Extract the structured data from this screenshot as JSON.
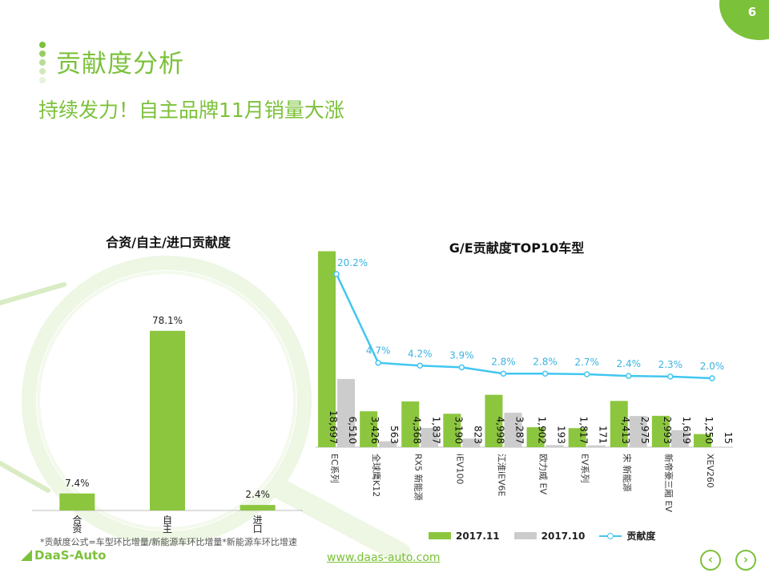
{
  "page": {
    "number": "6",
    "title": "贡献度分析",
    "subtitle": "持续发力！自主品牌11月销量大涨",
    "footnote": "*贡献度公式=车型环比增量/新能源车环比增量*新能源车环比增速",
    "url": "www.daas-auto.com",
    "logo_text": "DaaS-Auto",
    "nav_prev": "‹",
    "nav_next": "›"
  },
  "colors": {
    "accent": "#7cc13a",
    "bar_green": "#8cc63f",
    "bar_gray": "#cccccc",
    "line_blue": "#42c6f0"
  },
  "chart_data": [
    {
      "type": "bar",
      "title": "合资/自主/进口贡献度",
      "categories": [
        "合资",
        "自主",
        "进口"
      ],
      "values": [
        7.4,
        78.1,
        2.4
      ],
      "labels": [
        "7.4%",
        "78.1%",
        "2.4%"
      ],
      "ylim": [
        0,
        100
      ],
      "grid": false
    },
    {
      "type": "bar",
      "title": "G/E贡献度TOP10车型",
      "categories": [
        "EC系列",
        "全球鹰K12",
        "RX5 新能源",
        "iEV100",
        "江淮iEV6E",
        "欧力威 EV",
        "EV系列",
        "宋 新能源",
        "新帝豪三厢 EV",
        "XEV260"
      ],
      "series": [
        {
          "name": "2017.11",
          "values": [
            18697,
            3426,
            4368,
            3190,
            4998,
            1902,
            1817,
            4413,
            2993,
            1250
          ],
          "labels": [
            "18,697",
            "3,426",
            "4,368",
            "3,190",
            "4,998",
            "1,902",
            "1,817",
            "4,413",
            "2,993",
            "1,250"
          ]
        },
        {
          "name": "2017.10",
          "values": [
            6510,
            563,
            1837,
            823,
            3287,
            193,
            171,
            2975,
            1619,
            15
          ],
          "labels": [
            "6,510",
            "563",
            "1,837",
            "823",
            "3,287",
            "193",
            "171",
            "2,975",
            "1,619",
            "15"
          ]
        },
        {
          "name": "贡献度",
          "type": "line",
          "values": [
            20.2,
            4.7,
            4.2,
            3.9,
            2.8,
            2.8,
            2.7,
            2.4,
            2.3,
            2.0
          ],
          "labels": [
            "20.2%",
            "4.7%",
            "4.2%",
            "3.9%",
            "2.8%",
            "2.8%",
            "2.7%",
            "2.4%",
            "2.3%",
            "2.0%"
          ]
        }
      ],
      "legend": "bottom",
      "grid": false
    }
  ]
}
